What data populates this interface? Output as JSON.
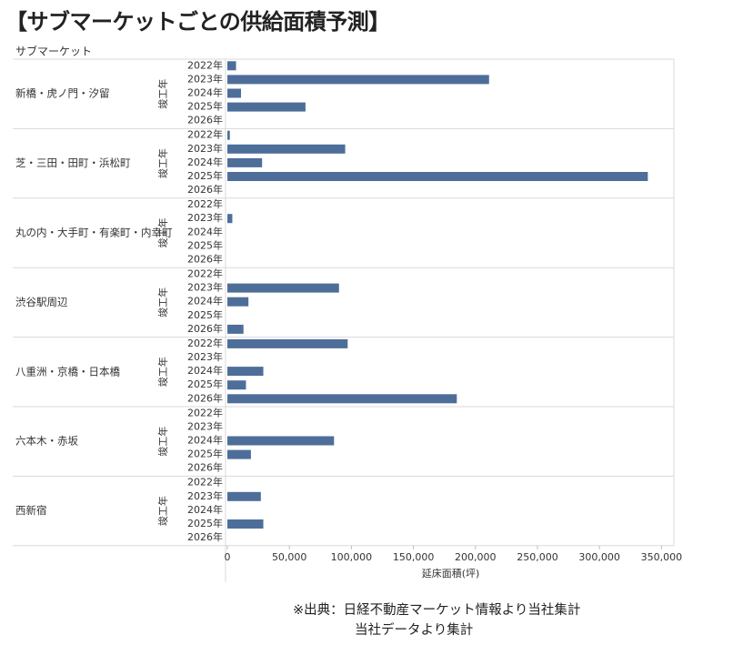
{
  "title": "【サブマーケットごとの供給面積予測】",
  "source_line1": "※出典：日経不動産マーケット情報より当社集計",
  "source_line2": "当社データより集計",
  "chart_data": {
    "type": "bar",
    "orientation": "horizontal",
    "title": "【サブマーケットごとの供給面積予測】",
    "group_header": "サブマーケット",
    "subgroup_label": "竣工年",
    "xlabel": "延床面積(坪)",
    "xlim": [
      0,
      360000
    ],
    "xticks": [
      0,
      50000,
      100000,
      150000,
      200000,
      250000,
      300000,
      350000
    ],
    "xtick_labels": [
      "0",
      "50,000",
      "100,000",
      "150,000",
      "200,000",
      "250,000",
      "300,000",
      "350,000"
    ],
    "years": [
      "2022年",
      "2023年",
      "2024年",
      "2025年",
      "2026年"
    ],
    "bar_color": "#4e6e9a",
    "groups": [
      {
        "name": "新橋・虎ノ門・汐留",
        "values": [
          7000,
          211000,
          11000,
          63000,
          0
        ]
      },
      {
        "name": "芝・三田・田町・浜松町",
        "values": [
          2000,
          95000,
          28000,
          339000,
          0
        ]
      },
      {
        "name": "丸の内・大手町・有楽町・内幸町",
        "values": [
          0,
          4000,
          0,
          0,
          0
        ]
      },
      {
        "name": "渋谷駅周辺",
        "values": [
          0,
          90000,
          17000,
          0,
          13000
        ]
      },
      {
        "name": "八重洲・京橋・日本橋",
        "values": [
          97000,
          0,
          29000,
          15000,
          185000
        ]
      },
      {
        "name": "六本木・赤坂",
        "values": [
          0,
          0,
          86000,
          19000,
          0
        ]
      },
      {
        "name": "西新宿",
        "values": [
          0,
          27000,
          0,
          29000,
          0
        ]
      }
    ]
  }
}
